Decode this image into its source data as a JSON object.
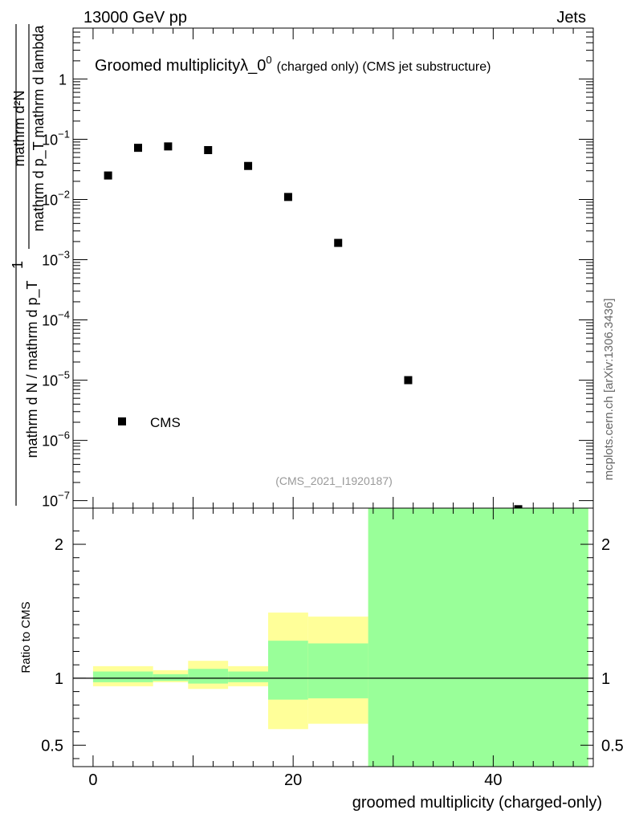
{
  "header": {
    "left": "13000 GeV pp",
    "right": "Jets"
  },
  "side_label": "mcplots.cern.ch [arXiv:1306.3436]",
  "chart_data": [
    {
      "type": "scatter",
      "title": "Groomed multiplicity",
      "title_symbol": "λ_0",
      "title_sup": "0",
      "title_suffix": "(charged only) (CMS jet substructure)",
      "ylabel": "1 / (mathrm d N / mathrm d p_T) · mathrm d²N / (mathrm d p_T mathrm d lambda)",
      "ylabel_num": "mathrm d²N",
      "ylabel_den": "mathrm d p_T mathrm d lambda",
      "ylabel_one": "1",
      "ylabel_den2": "mathrm d N / mathrm d p_T",
      "y_scale": "log",
      "ylim": [
        7.5e-08,
        7
      ],
      "xlim": [
        -2,
        50
      ],
      "y_ticks": [
        {
          "value": 1,
          "label": "1"
        },
        {
          "value": 0.1,
          "label": "10",
          "exp": "−1"
        },
        {
          "value": 0.01,
          "label": "10",
          "exp": "−2"
        },
        {
          "value": 0.001,
          "label": "10",
          "exp": "−3"
        },
        {
          "value": 0.0001,
          "label": "10",
          "exp": "−4"
        },
        {
          "value": 1e-05,
          "label": "10",
          "exp": "−5"
        },
        {
          "value": 1e-06,
          "label": "10",
          "exp": "−6"
        },
        {
          "value": 1e-07,
          "label": "10",
          "exp": "−7"
        }
      ],
      "series": [
        {
          "name": "CMS",
          "color": "#000000",
          "points": [
            {
              "x": 1.5,
              "y": 0.025
            },
            {
              "x": 4.5,
              "y": 0.072
            },
            {
              "x": 7.5,
              "y": 0.076
            },
            {
              "x": 11.5,
              "y": 0.066
            },
            {
              "x": 15.5,
              "y": 0.036
            },
            {
              "x": 19.5,
              "y": 0.011
            },
            {
              "x": 24.5,
              "y": 0.0019
            },
            {
              "x": 31.5,
              "y": 1e-05
            },
            {
              "x": 42.5,
              "y": 7.2e-08
            }
          ]
        }
      ],
      "legend": {
        "entry": "CMS",
        "position": "bottom-left"
      },
      "watermark": "(CMS_2021_I1920187)"
    },
    {
      "type": "area",
      "ylabel": "Ratio to CMS",
      "xlabel": "groomed multiplicity (charged-only)",
      "xlim": [
        -2,
        50
      ],
      "ylim": [
        0.34,
        2.27
      ],
      "x_ticks": [
        0,
        20,
        40
      ],
      "y_ticks": [
        0.5,
        1,
        2
      ],
      "reference_line": 1,
      "colors": {
        "stat_band": "#99ff99",
        "syst_band": "#ffff99"
      },
      "bins": [
        {
          "x_low": 0,
          "x_high": 6,
          "total_low": 0.94,
          "total_high": 1.09,
          "stat_low": 0.97,
          "stat_high": 1.05
        },
        {
          "x_low": 6,
          "x_high": 9.5,
          "total_low": 0.97,
          "total_high": 1.06,
          "stat_low": 0.98,
          "stat_high": 1.03
        },
        {
          "x_low": 9.5,
          "x_high": 13.5,
          "total_low": 0.92,
          "total_high": 1.13,
          "stat_low": 0.96,
          "stat_high": 1.07
        },
        {
          "x_low": 13.5,
          "x_high": 17.5,
          "total_low": 0.94,
          "total_high": 1.09,
          "stat_low": 0.97,
          "stat_high": 1.05
        },
        {
          "x_low": 17.5,
          "x_high": 21.5,
          "total_low": 0.62,
          "total_high": 1.49,
          "stat_low": 0.84,
          "stat_high": 1.28
        },
        {
          "x_low": 21.5,
          "x_high": 27.5,
          "total_low": 0.66,
          "total_high": 1.46,
          "stat_low": 0.85,
          "stat_high": 1.26
        },
        {
          "x_low": 27.5,
          "x_high": 49.5,
          "total_low": 0.34,
          "total_high": 2.27,
          "stat_low": 0.34,
          "stat_high": 2.27
        }
      ]
    }
  ]
}
